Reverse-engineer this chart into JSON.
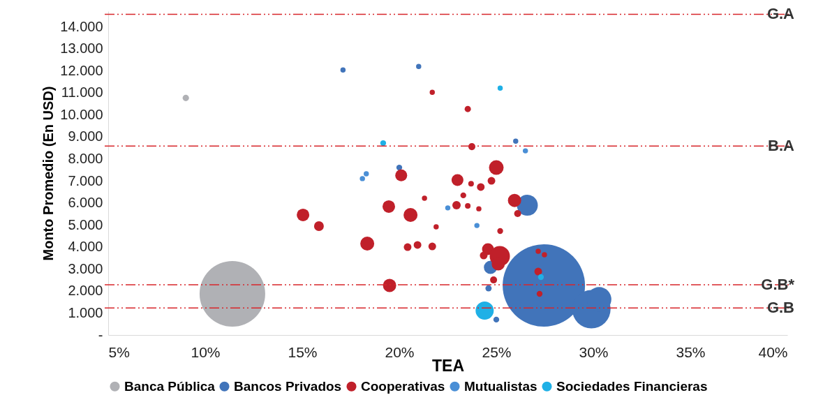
{
  "chart_data": {
    "type": "bubble",
    "xlabel": "TEA",
    "ylabel": "Monto Promedio (En USD)",
    "xlim": [
      5,
      40
    ],
    "xticks": [
      {
        "value": 5,
        "label": "5%"
      },
      {
        "value": 10,
        "label": "10%"
      },
      {
        "value": 15,
        "label": "15%"
      },
      {
        "value": 20,
        "label": "20%"
      },
      {
        "value": 25,
        "label": "25%"
      },
      {
        "value": 30,
        "label": "30%"
      },
      {
        "value": 35,
        "label": "35%"
      },
      {
        "value": 40,
        "label": "40%"
      }
    ],
    "ylim": [
      0,
      14700
    ],
    "yticks": [
      {
        "value": 0,
        "label": "-"
      },
      {
        "value": 1000,
        "label": "1.000"
      },
      {
        "value": 2000,
        "label": "2.000"
      },
      {
        "value": 3000,
        "label": "3.000"
      },
      {
        "value": 4000,
        "label": "4.000"
      },
      {
        "value": 5000,
        "label": "5.000"
      },
      {
        "value": 6000,
        "label": "6.000"
      },
      {
        "value": 7000,
        "label": "7.000"
      },
      {
        "value": 8000,
        "label": "8.000"
      },
      {
        "value": 9000,
        "label": "9.000"
      },
      {
        "value": 10000,
        "label": "10.000"
      },
      {
        "value": 11000,
        "label": "11.000"
      },
      {
        "value": 12000,
        "label": "12.000"
      },
      {
        "value": 13000,
        "label": "13.000"
      },
      {
        "value": 14000,
        "label": "14.000"
      }
    ],
    "grid": false,
    "legend": "bottom",
    "marker": "circle",
    "series": [
      {
        "name": "Banca Pública",
        "color": "#b0b1b5",
        "x": [
          9.0,
          11.4
        ],
        "values": [
          10760,
          1870
        ],
        "sizes": [
          0.006,
          0.6346
        ]
      },
      {
        "name": "Bancos Privados",
        "color": "#4174ba",
        "x": [
          21.0,
          17.1,
          20.0,
          26.0,
          26.6,
          24.7,
          24.6,
          25.0,
          27.45,
          29.9,
          30.3
        ],
        "values": [
          12190,
          12030,
          7600,
          8800,
          5890,
          3070,
          2120,
          700,
          2250,
          1170,
          1620
        ],
        "sizes": [
          0.004,
          0.004,
          0.005,
          0.004,
          0.0646,
          0.0259,
          0.0058,
          0.005,
          1,
          0.2172,
          0.088
        ]
      },
      {
        "name": "Cooperativas",
        "color": "#c0202a",
        "x": [
          21.7,
          20.1,
          21.3,
          19.46,
          20.58,
          15.04,
          15.86,
          21.9,
          18.35,
          20.43,
          20.94,
          21.7,
          19.5,
          23.53,
          23.74,
          25.0,
          23.0,
          23.7,
          24.2,
          24.75,
          23.3,
          22.95,
          23.53,
          24.1,
          25.94,
          26.1,
          25.2,
          24.57,
          24.35,
          25.18,
          25.1,
          24.86,
          27.16,
          27.48,
          27.16,
          27.23
        ],
        "values": [
          11020,
          7250,
          6210,
          5830,
          5450,
          5450,
          4940,
          4910,
          4150,
          3990,
          4090,
          4020,
          2250,
          10260,
          8550,
          7600,
          7030,
          6870,
          6720,
          7000,
          6340,
          5890,
          5860,
          5730,
          6110,
          5510,
          4720,
          3900,
          3610,
          3580,
          3230,
          2500,
          3800,
          3640,
          2880,
          1870
        ],
        "sizes": [
          0.004,
          0.0208,
          0.004,
          0.0233,
          0.0287,
          0.0233,
          0.0141,
          0.004,
          0.0287,
          0.0087,
          0.0087,
          0.0087,
          0.0259,
          0.0058,
          0.0072,
          0.0317,
          0.0208,
          0.0046,
          0.0087,
          0.0087,
          0.005,
          0.0103,
          0.0046,
          0.004,
          0.0259,
          0.0072,
          0.005,
          0.0208,
          0.0087,
          0.0604,
          0.0259,
          0.0072,
          0.004,
          0.004,
          0.0087,
          0.005
        ]
      },
      {
        "name": "Mutualistas",
        "color": "#4a8fd6",
        "x": [
          18.1,
          18.3,
          22.5,
          24.0,
          26.5
        ],
        "values": [
          7100,
          7320,
          5770,
          4970,
          8360
        ],
        "sizes": [
          0.004,
          0.004,
          0.004,
          0.004,
          0.004
        ]
      },
      {
        "name": "Sociedades Financieras",
        "color": "#1fb0e6",
        "x": [
          19.17,
          24.4,
          27.3,
          25.2
        ],
        "values": [
          8710,
          1110,
          2630,
          11210
        ],
        "sizes": [
          0.005,
          0.0486,
          0.005,
          0.004
        ]
      }
    ],
    "ref_lines": [
      {
        "axis": "y",
        "value": 14560,
        "label": "G.A",
        "color": "#d7262b",
        "line_style": "dashed"
      },
      {
        "axis": "y",
        "value": 8580,
        "label": "B.A",
        "color": "#d7262b",
        "line_style": "dashed"
      },
      {
        "axis": "y",
        "value": 2280,
        "label": "G.B*",
        "color": "#d7262b",
        "line_style": "dashed"
      },
      {
        "axis": "y",
        "value": 1230,
        "label": "G.B",
        "color": "#d7262b",
        "line_style": "dashed"
      }
    ]
  }
}
